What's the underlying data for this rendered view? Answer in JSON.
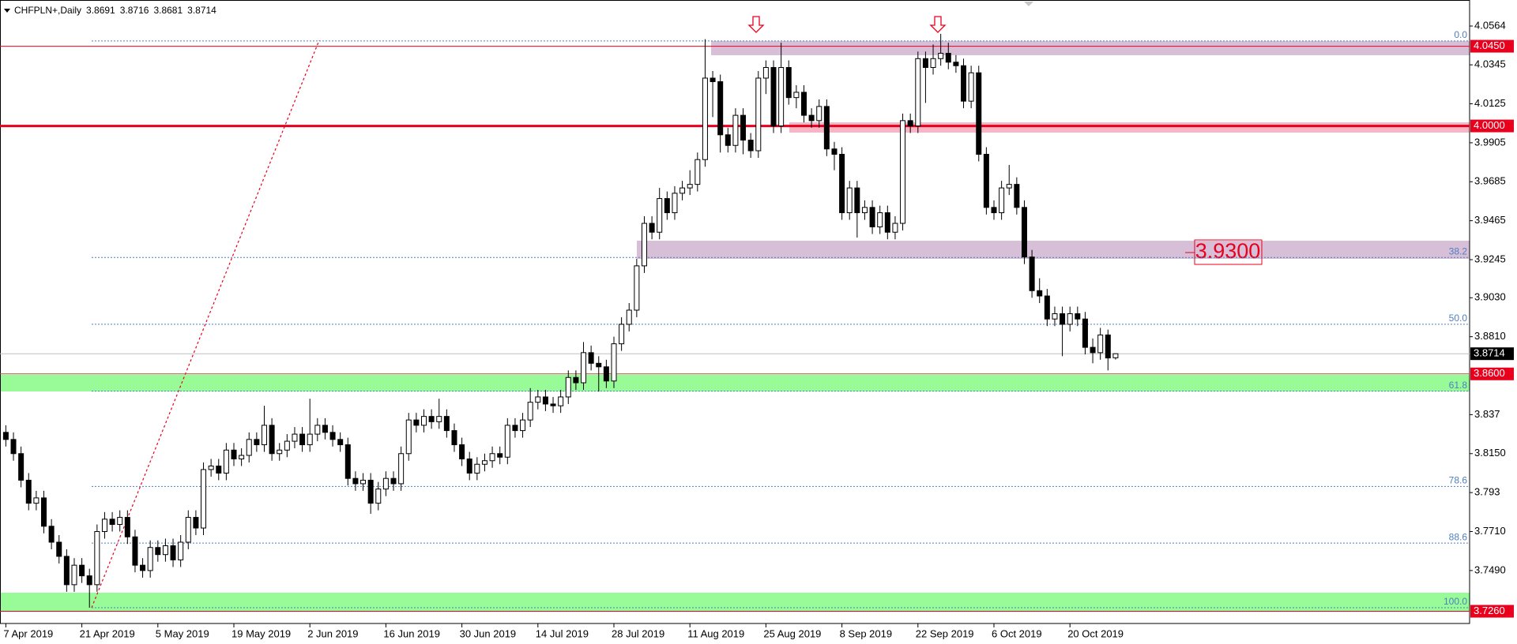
{
  "chart_data": {
    "type": "candlestick",
    "header": "CHFPLN+,Daily",
    "ohlc": [
      3.8691,
      3.8716,
      3.8681,
      3.8714
    ],
    "annotation": "3.9300",
    "ylim": [
      3.7191,
      4.0711
    ],
    "yticks": [
      4.0564,
      4.0345,
      4.0125,
      3.9905,
      3.9685,
      3.9465,
      3.9245,
      {
        "value": 3.903,
        "label": "3.9030"
      },
      {
        "value": 3.881,
        "label": "3.8810"
      },
      3.837,
      {
        "value": 3.815,
        "label": "3.8150"
      },
      3.793,
      {
        "value": 3.771,
        "label": "3.7710"
      },
      {
        "value": 3.749,
        "label": "3.7490"
      }
    ],
    "x_labels": [
      "7 Apr 2019",
      "21 Apr 2019",
      "5 May 2019",
      "19 May 2019",
      "2 Jun 2019",
      "16 Jun 2019",
      "30 Jun 2019",
      "14 Jul 2019",
      "28 Jul 2019",
      "11 Aug 2019",
      "25 Aug 2019",
      "8 Sep 2019",
      "22 Sep 2019",
      "6 Oct 2019",
      "20 Oct 2019"
    ],
    "up_color": "#ffffff",
    "down_color": "#000000",
    "levels": [
      {
        "value": 4.045,
        "label": "4.0450",
        "color": "#e8001c",
        "line_color": "#e8001c"
      },
      {
        "value": 4,
        "label": "4.0000",
        "color": "#e8001c",
        "line_color": "#e8001c",
        "width": 3
      },
      {
        "value": 3.8714,
        "label": "3.8714",
        "color": "#000000",
        "line_color": "#c0c0c0"
      },
      {
        "value": 3.86,
        "label": "3.8600",
        "color": "#e8001c",
        "line_color": "#a0522d"
      },
      {
        "value": 3.726,
        "label": "3.7260",
        "color": "#e8001c",
        "line_color": "#e8001c"
      }
    ],
    "fib": {
      "high": 4.048,
      "low": 3.728,
      "color": "#4f7fc0",
      "levels": [
        {
          "value": 0,
          "label": "0.0"
        },
        38.2,
        {
          "value": 50,
          "label": "50.0"
        },
        61.8,
        78.6,
        88.6,
        {
          "value": 100,
          "label": "100.0"
        }
      ]
    },
    "open": [
      3.827,
      3.823,
      3.815,
      3.8,
      3.787,
      3.79,
      3.774,
      3.765,
      3.757,
      3.741,
      3.752,
      3.746,
      3.741,
      3.771,
      3.778,
      3.775,
      3.779,
      3.768,
      3.752,
      3.749,
      3.762,
      3.758,
      3.763,
      3.755,
      3.765,
      3.779,
      3.773,
      3.806,
      3.808,
      3.804,
      3.817,
      3.812,
      3.814,
      3.823,
      3.82,
      3.831,
      3.815,
      3.817,
      3.822,
      3.826,
      3.82,
      3.826,
      3.831,
      3.827,
      3.823,
      3.82,
      3.801,
      3.798,
      3.8,
      3.787,
      3.795,
      3.801,
      3.798,
      3.815,
      3.834,
      3.831,
      3.836,
      3.833,
      3.836,
      3.828,
      3.82,
      3.812,
      3.804,
      3.809,
      3.811,
      3.815,
      3.813,
      3.831,
      3.828,
      3.834,
      3.844,
      3.847,
      3.843,
      3.842,
      3.847,
      3.858,
      3.855,
      3.872,
      3.866,
      3.864,
      3.856,
      3.877,
      3.888,
      3.896,
      3.921,
      3.945,
      3.94,
      3.959,
      3.951,
      3.962,
      3.965,
      3.967,
      3.981,
      4.027,
      4.025,
      3.995,
      3.989,
      4.006,
      3.992,
      3.986,
      4.027,
      4.033,
      4.0,
      4.033,
      4.016,
      4.019,
      4.006,
      4.003,
      4.011,
      3.987,
      3.984,
      3.951,
      3.965,
      3.951,
      3.954,
      3.943,
      3.951,
      3.94,
      3.945,
      4.003,
      4.0,
      4.038,
      4.033,
      4.038,
      4.041,
      4.036,
      4.034,
      4.014,
      4.03,
      3.984,
      3.954,
      3.951,
      3.965,
      3.967,
      3.954,
      3.926,
      3.907,
      3.904,
      3.891,
      3.894,
      3.888,
      3.894,
      3.891,
      3.875,
      3.872,
      3.882,
      3.8691
    ],
    "high": [
      3.831,
      3.827,
      3.819,
      3.804,
      3.794,
      3.794,
      3.778,
      3.769,
      3.761,
      3.756,
      3.756,
      3.75,
      3.775,
      3.782,
      3.782,
      3.783,
      3.783,
      3.772,
      3.756,
      3.766,
      3.766,
      3.767,
      3.767,
      3.769,
      3.783,
      3.783,
      3.81,
      3.812,
      3.812,
      3.821,
      3.821,
      3.818,
      3.827,
      3.827,
      3.842,
      3.835,
      3.821,
      3.826,
      3.83,
      3.83,
      3.846,
      3.835,
      3.835,
      3.831,
      3.827,
      3.824,
      3.805,
      3.804,
      3.804,
      3.799,
      3.805,
      3.805,
      3.819,
      3.838,
      3.838,
      3.84,
      3.84,
      3.846,
      3.84,
      3.832,
      3.824,
      3.816,
      3.813,
      3.815,
      3.819,
      3.819,
      3.835,
      3.835,
      3.838,
      3.852,
      3.851,
      3.851,
      3.847,
      3.851,
      3.862,
      3.862,
      3.878,
      3.876,
      3.87,
      3.868,
      3.881,
      3.892,
      3.9,
      3.925,
      3.949,
      3.949,
      3.965,
      3.963,
      3.966,
      3.969,
      3.975,
      3.985,
      4.049,
      4.031,
      4.029,
      3.999,
      4.01,
      4.01,
      3.996,
      4.031,
      4.037,
      4.037,
      4.047,
      4.037,
      4.023,
      4.023,
      4.01,
      4.015,
      4.015,
      3.991,
      3.988,
      3.969,
      3.969,
      3.958,
      3.958,
      3.955,
      3.955,
      3.949,
      4.007,
      4.007,
      4.042,
      4.042,
      4.046,
      4.052,
      4.047,
      4.04,
      4.038,
      4.034,
      4.034,
      3.988,
      3.958,
      3.969,
      3.978,
      3.971,
      3.958,
      3.93,
      3.914,
      3.908,
      3.898,
      3.898,
      3.898,
      3.898,
      3.895,
      3.88,
      3.886,
      3.885,
      3.8716
    ],
    "low": [
      3.819,
      3.811,
      3.796,
      3.783,
      3.783,
      3.77,
      3.761,
      3.753,
      3.737,
      3.737,
      3.742,
      3.728,
      3.737,
      3.767,
      3.771,
      3.771,
      3.764,
      3.748,
      3.745,
      3.745,
      3.754,
      3.754,
      3.751,
      3.751,
      3.761,
      3.769,
      3.769,
      3.802,
      3.8,
      3.8,
      3.808,
      3.808,
      3.81,
      3.816,
      3.816,
      3.811,
      3.811,
      3.813,
      3.818,
      3.816,
      3.816,
      3.822,
      3.823,
      3.819,
      3.816,
      3.797,
      3.794,
      3.794,
      3.781,
      3.783,
      3.791,
      3.794,
      3.794,
      3.811,
      3.827,
      3.827,
      3.829,
      3.829,
      3.824,
      3.816,
      3.808,
      3.8,
      3.8,
      3.805,
      3.807,
      3.809,
      3.809,
      3.824,
      3.824,
      3.83,
      3.84,
      3.839,
      3.838,
      3.838,
      3.843,
      3.851,
      3.851,
      3.862,
      3.85,
      3.852,
      3.852,
      3.873,
      3.884,
      3.892,
      3.917,
      3.936,
      3.936,
      3.947,
      3.947,
      3.958,
      3.961,
      3.963,
      3.977,
      4.005,
      3.985,
      3.985,
      3.985,
      3.984,
      3.982,
      3.982,
      4.018,
      3.996,
      3.996,
      4.012,
      4.01,
      4.002,
      3.999,
      3.999,
      3.983,
      3.975,
      3.947,
      3.947,
      3.937,
      3.947,
      3.939,
      3.939,
      3.936,
      3.936,
      3.941,
      3.996,
      3.996,
      4.013,
      4.029,
      4.034,
      4.032,
      4.03,
      4.01,
      4.01,
      3.98,
      3.95,
      3.947,
      3.947,
      3.961,
      3.95,
      3.922,
      3.903,
      3.9,
      3.887,
      3.887,
      3.87,
      3.884,
      3.887,
      3.871,
      3.866,
      3.868,
      3.862,
      3.8681
    ],
    "close": [
      3.823,
      3.815,
      3.8,
      3.787,
      3.79,
      3.774,
      3.765,
      3.757,
      3.741,
      3.752,
      3.746,
      3.741,
      3.771,
      3.778,
      3.775,
      3.779,
      3.768,
      3.752,
      3.749,
      3.762,
      3.758,
      3.763,
      3.755,
      3.765,
      3.779,
      3.773,
      3.806,
      3.808,
      3.804,
      3.817,
      3.812,
      3.814,
      3.823,
      3.82,
      3.831,
      3.815,
      3.817,
      3.822,
      3.826,
      3.82,
      3.826,
      3.831,
      3.827,
      3.823,
      3.82,
      3.801,
      3.798,
      3.8,
      3.787,
      3.795,
      3.801,
      3.798,
      3.815,
      3.834,
      3.831,
      3.836,
      3.833,
      3.836,
      3.828,
      3.82,
      3.812,
      3.804,
      3.809,
      3.811,
      3.815,
      3.813,
      3.831,
      3.828,
      3.834,
      3.844,
      3.847,
      3.843,
      3.842,
      3.847,
      3.858,
      3.855,
      3.872,
      3.866,
      3.864,
      3.856,
      3.877,
      3.888,
      3.896,
      3.921,
      3.945,
      3.94,
      3.959,
      3.951,
      3.962,
      3.965,
      3.967,
      3.981,
      4.027,
      4.025,
      3.995,
      3.989,
      4.006,
      3.992,
      3.986,
      4.027,
      4.033,
      4.0,
      4.033,
      4.016,
      4.019,
      4.006,
      4.003,
      4.011,
      3.987,
      3.984,
      3.951,
      3.965,
      3.951,
      3.954,
      3.943,
      3.951,
      3.94,
      3.945,
      4.003,
      4.0,
      4.038,
      4.033,
      4.038,
      4.041,
      4.036,
      4.034,
      4.014,
      4.03,
      3.984,
      3.954,
      3.951,
      3.965,
      3.967,
      3.954,
      3.926,
      3.907,
      3.904,
      3.891,
      3.894,
      3.888,
      3.894,
      3.891,
      3.875,
      3.872,
      3.882,
      3.869,
      3.8714
    ]
  }
}
